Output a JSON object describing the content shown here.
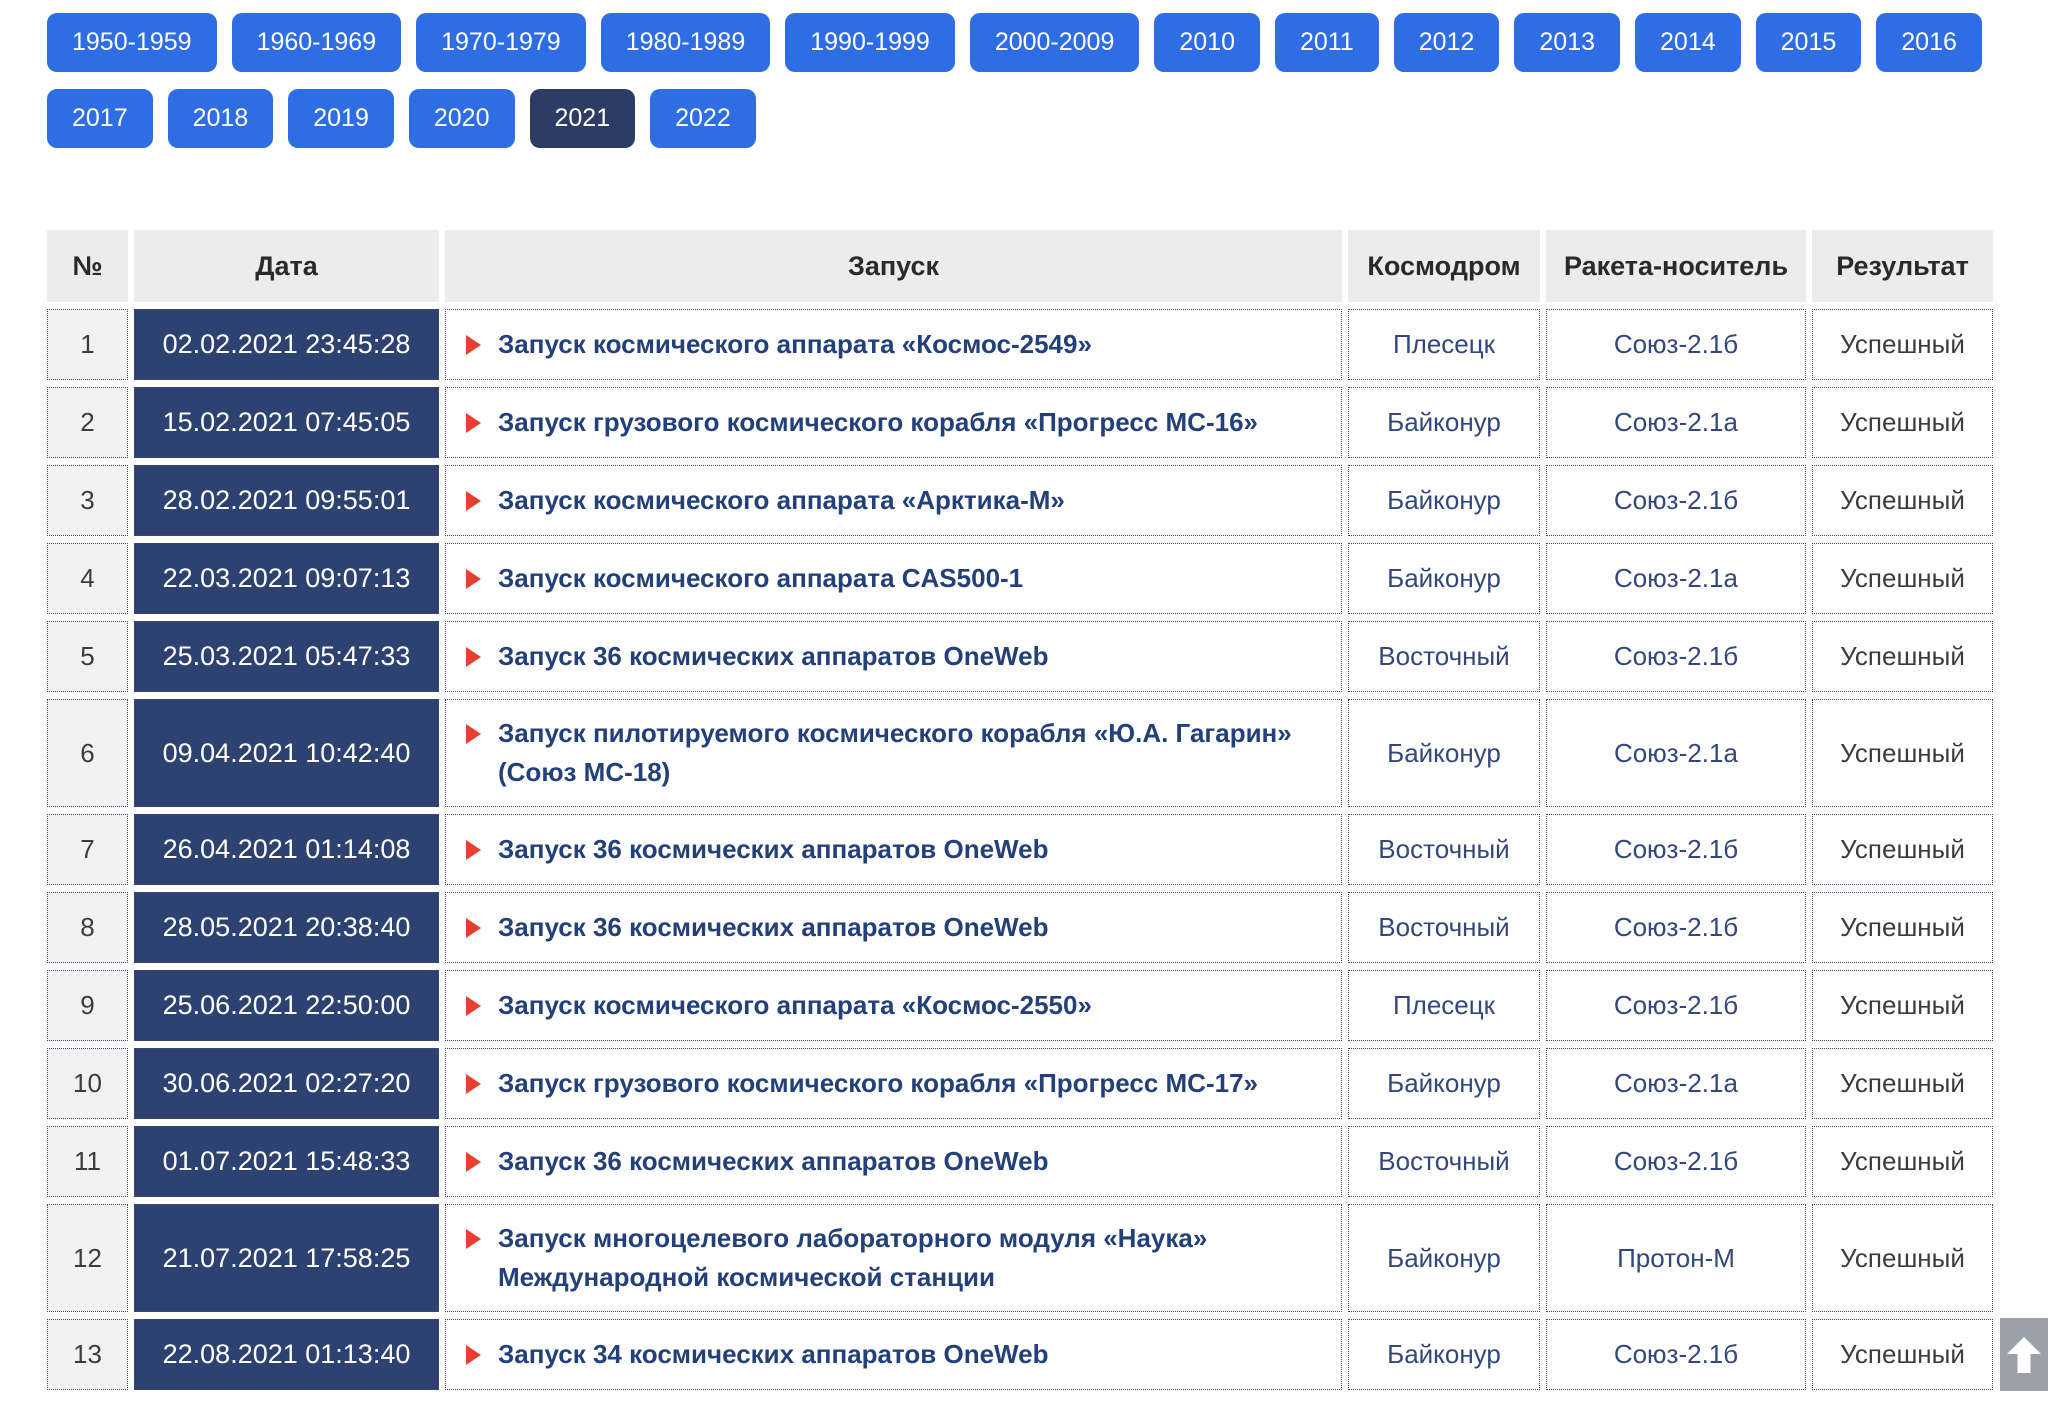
{
  "filters": {
    "selected": "2021",
    "buttons": [
      "1950-1959",
      "1960-1969",
      "1970-1979",
      "1980-1989",
      "1990-1999",
      "2000-2009",
      "2010",
      "2011",
      "2012",
      "2013",
      "2014",
      "2015",
      "2016",
      "2017",
      "2018",
      "2019",
      "2020",
      "2021",
      "2022"
    ]
  },
  "table": {
    "headers": {
      "num": "№",
      "date": "Дата",
      "launch": "Запуск",
      "cosmodrome": "Космодром",
      "rocket": "Ракета-носитель",
      "result": "Результат"
    },
    "rows": [
      {
        "num": "1",
        "date": "02.02.2021 23:45:28",
        "launch": "Запуск космического аппарата «Космос-2549»",
        "cosmodrome": "Плесецк",
        "rocket": "Союз-2.1б",
        "result": "Успешный"
      },
      {
        "num": "2",
        "date": "15.02.2021 07:45:05",
        "launch": "Запуск грузового космического корабля «Прогресс МС-16»",
        "cosmodrome": "Байконур",
        "rocket": "Союз-2.1а",
        "result": "Успешный"
      },
      {
        "num": "3",
        "date": "28.02.2021 09:55:01",
        "launch": "Запуск космического аппарата «Арктика-М»",
        "cosmodrome": "Байконур",
        "rocket": "Союз-2.1б",
        "result": "Успешный"
      },
      {
        "num": "4",
        "date": "22.03.2021 09:07:13",
        "launch": "Запуск космического аппарата CAS500-1",
        "cosmodrome": "Байконур",
        "rocket": "Союз-2.1а",
        "result": "Успешный"
      },
      {
        "num": "5",
        "date": "25.03.2021 05:47:33",
        "launch": "Запуск 36 космических аппаратов OneWeb",
        "cosmodrome": "Восточный",
        "rocket": "Союз-2.1б",
        "result": "Успешный"
      },
      {
        "num": "6",
        "date": "09.04.2021 10:42:40",
        "launch": "Запуск пилотируемого космического корабля «Ю.А. Гагарин» (Союз МС-18)",
        "cosmodrome": "Байконур",
        "rocket": "Союз-2.1а",
        "result": "Успешный"
      },
      {
        "num": "7",
        "date": "26.04.2021 01:14:08",
        "launch": "Запуск 36 космических аппаратов OneWeb",
        "cosmodrome": "Восточный",
        "rocket": "Союз-2.1б",
        "result": "Успешный"
      },
      {
        "num": "8",
        "date": "28.05.2021 20:38:40",
        "launch": "Запуск 36 космических аппаратов OneWeb",
        "cosmodrome": "Восточный",
        "rocket": "Союз-2.1б",
        "result": "Успешный"
      },
      {
        "num": "9",
        "date": "25.06.2021 22:50:00",
        "launch": "Запуск космического аппарата «Космос-2550»",
        "cosmodrome": "Плесецк",
        "rocket": "Союз-2.1б",
        "result": "Успешный"
      },
      {
        "num": "10",
        "date": "30.06.2021 02:27:20",
        "launch": "Запуск грузового космического корабля «Прогресс МС-17»",
        "cosmodrome": "Байконур",
        "rocket": "Союз-2.1а",
        "result": "Успешный"
      },
      {
        "num": "11",
        "date": "01.07.2021 15:48:33",
        "launch": "Запуск 36 космических аппаратов OneWeb",
        "cosmodrome": "Восточный",
        "rocket": "Союз-2.1б",
        "result": "Успешный"
      },
      {
        "num": "12",
        "date": "21.07.2021 17:58:25",
        "launch": "Запуск многоцелевого лабораторного модуля «Наука» Международной космической станции",
        "cosmodrome": "Байконур",
        "rocket": "Протон-М",
        "result": "Успешный"
      },
      {
        "num": "13",
        "date": "22.08.2021 01:13:40",
        "launch": "Запуск 34 космических аппаратов OneWeb",
        "cosmodrome": "Байконур",
        "rocket": "Союз-2.1б",
        "result": "Успешный"
      }
    ]
  },
  "colors": {
    "accent_blue": "#2e6de4",
    "selected_navy": "#2c3c63",
    "date_cell_navy": "#2e4272",
    "launch_link_navy": "#24407a",
    "marker_red": "#e63f2e",
    "border_dotted_navy": "#3e4a76",
    "result_text_gray": "#3c3c3c"
  }
}
